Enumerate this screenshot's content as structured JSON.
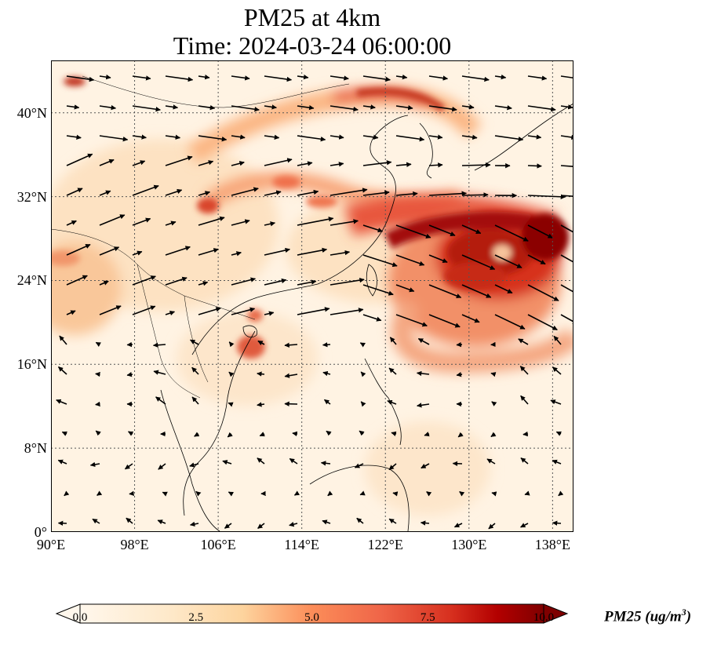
{
  "title": {
    "line1": "PM25 at 4km",
    "line2": "Time: 2024-03-24 06:00:00"
  },
  "map": {
    "lon_range": [
      90,
      140
    ],
    "lat_range": [
      0,
      45
    ],
    "variable": "PM25",
    "level": "4km",
    "gridlines": "dotted",
    "lat_ticks": [
      {
        "value": 0,
        "label": "0°"
      },
      {
        "value": 8,
        "label": "8°N"
      },
      {
        "value": 16,
        "label": "16°N"
      },
      {
        "value": 24,
        "label": "24°N"
      },
      {
        "value": 32,
        "label": "32°N"
      },
      {
        "value": 40,
        "label": "40°N"
      }
    ],
    "lon_ticks": [
      {
        "value": 90,
        "label": "90°E"
      },
      {
        "value": 98,
        "label": "98°E"
      },
      {
        "value": 106,
        "label": "106°E"
      },
      {
        "value": 114,
        "label": "114°E"
      },
      {
        "value": 122,
        "label": "122°E"
      },
      {
        "value": 130,
        "label": "130°E"
      },
      {
        "value": 138,
        "label": "138°E"
      }
    ],
    "features": [
      "coastlines",
      "country borders",
      "wind vectors"
    ]
  },
  "colorbar": {
    "label": "PM25 (ug/m",
    "label_sup": "3",
    "label_tail": ")",
    "min": 0,
    "max": 10,
    "extend": "both",
    "colormap": "OrRd",
    "ticks": [
      {
        "value": 0,
        "label": "0.0"
      },
      {
        "value": 2.5,
        "label": "2.5"
      },
      {
        "value": 5,
        "label": "5.0"
      },
      {
        "value": 7.5,
        "label": "7.5"
      },
      {
        "value": 10,
        "label": "10.0"
      }
    ],
    "colors": [
      "#fff7ec",
      "#fdd49e",
      "#fc8d59",
      "#d7301f",
      "#7f0000"
    ]
  }
}
